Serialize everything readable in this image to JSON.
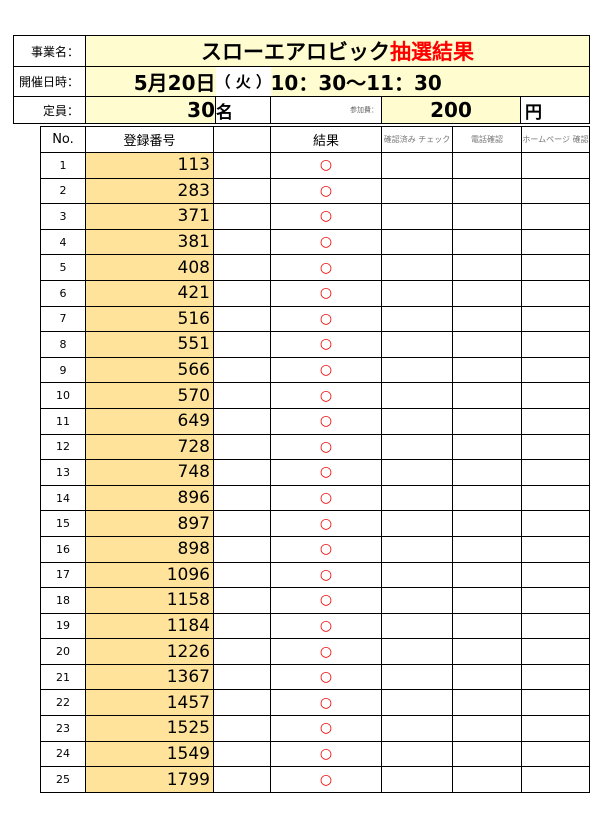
{
  "header": {
    "event_label": "事業名：",
    "event_name": "スローエアロビック",
    "event_suffix": "抽選結果",
    "date_label": "開催日時：",
    "date": "5月20日",
    "weekday": "（ 火 ）",
    "time": "10：30〜11：30",
    "capacity_label": "定員：",
    "capacity": "30",
    "capacity_unit": "名",
    "fee_label": "参加費：",
    "fee": "200",
    "fee_unit": "円"
  },
  "table": {
    "columns": [
      "No.",
      "登録番号",
      "",
      "結果",
      "確認済み チェック",
      "電話確認",
      "ホームページ 確認"
    ],
    "rows": [
      {
        "no": "1",
        "reg": "113",
        "result": "○"
      },
      {
        "no": "2",
        "reg": "283",
        "result": "○"
      },
      {
        "no": "3",
        "reg": "371",
        "result": "○"
      },
      {
        "no": "4",
        "reg": "381",
        "result": "○"
      },
      {
        "no": "5",
        "reg": "408",
        "result": "○"
      },
      {
        "no": "6",
        "reg": "421",
        "result": "○"
      },
      {
        "no": "7",
        "reg": "516",
        "result": "○"
      },
      {
        "no": "8",
        "reg": "551",
        "result": "○"
      },
      {
        "no": "9",
        "reg": "566",
        "result": "○"
      },
      {
        "no": "10",
        "reg": "570",
        "result": "○"
      },
      {
        "no": "11",
        "reg": "649",
        "result": "○"
      },
      {
        "no": "12",
        "reg": "728",
        "result": "○"
      },
      {
        "no": "13",
        "reg": "748",
        "result": "○"
      },
      {
        "no": "14",
        "reg": "896",
        "result": "○"
      },
      {
        "no": "15",
        "reg": "897",
        "result": "○"
      },
      {
        "no": "16",
        "reg": "898",
        "result": "○"
      },
      {
        "no": "17",
        "reg": "1096",
        "result": "○"
      },
      {
        "no": "18",
        "reg": "1158",
        "result": "○"
      },
      {
        "no": "19",
        "reg": "1184",
        "result": "○"
      },
      {
        "no": "20",
        "reg": "1226",
        "result": "○"
      },
      {
        "no": "21",
        "reg": "1367",
        "result": "○"
      },
      {
        "no": "22",
        "reg": "1457",
        "result": "○"
      },
      {
        "no": "23",
        "reg": "1525",
        "result": "○"
      },
      {
        "no": "24",
        "reg": "1549",
        "result": "○"
      },
      {
        "no": "25",
        "reg": "1799",
        "result": "○"
      }
    ]
  },
  "colors": {
    "highlight": "#fffdd0",
    "reg_fill": "#ffe39a",
    "result": "#ee0000",
    "title_accent": "#ff0000"
  }
}
